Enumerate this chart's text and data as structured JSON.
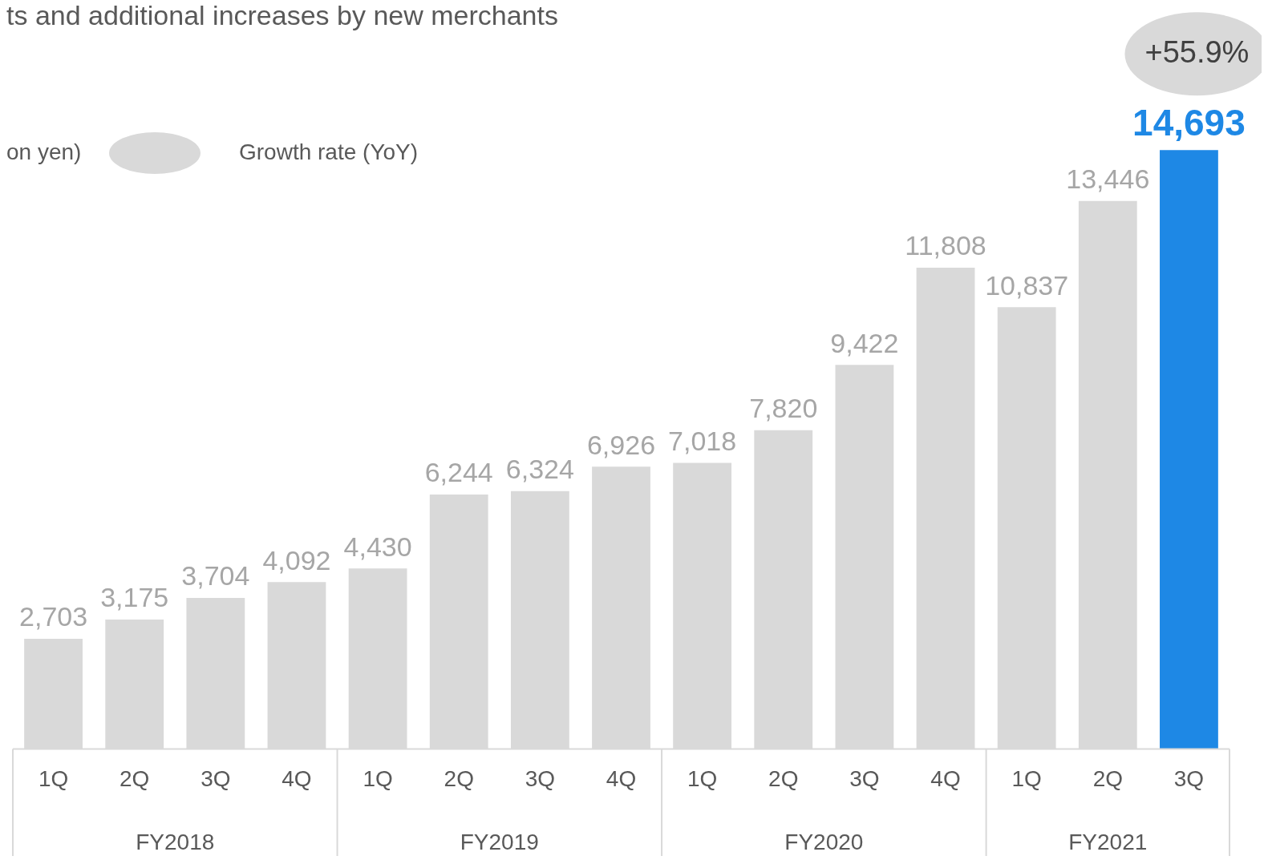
{
  "chart_data": {
    "type": "bar",
    "title": "ts and additional increases by new merchants",
    "categories": [
      "1Q",
      "2Q",
      "3Q",
      "4Q",
      "1Q",
      "2Q",
      "3Q",
      "4Q",
      "1Q",
      "2Q",
      "3Q",
      "4Q",
      "1Q",
      "2Q",
      "3Q"
    ],
    "values": [
      2703,
      3175,
      3704,
      4092,
      4430,
      6244,
      6324,
      6926,
      7018,
      7820,
      9422,
      11808,
      10837,
      13446,
      14693
    ],
    "colors": [
      "#d9d9d9",
      "#d9d9d9",
      "#d9d9d9",
      "#d9d9d9",
      "#d9d9d9",
      "#d9d9d9",
      "#d9d9d9",
      "#d9d9d9",
      "#d9d9d9",
      "#d9d9d9",
      "#d9d9d9",
      "#d9d9d9",
      "#d9d9d9",
      "#d9d9d9",
      "#1e88e5"
    ],
    "value_labels": [
      "2,703",
      "3,175",
      "3,704",
      "4,092",
      "4,430",
      "6,244",
      "6,324",
      "6,926",
      "7,018",
      "7,820",
      "9,422",
      "11,808",
      "10,837",
      "13,446",
      "14,693"
    ],
    "grid": false,
    "legend": false,
    "annotations": [
      "on yen)",
      "Growth rate (YoY)",
      "+55.9%",
      "FY2018",
      "FY2019",
      "FY2020",
      "FY2021"
    ]
  }
}
